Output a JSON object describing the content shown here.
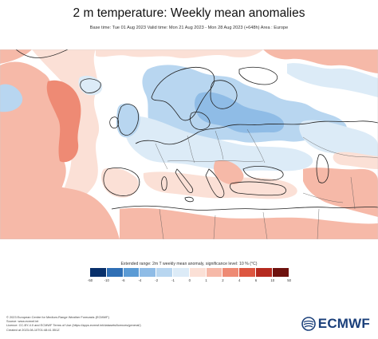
{
  "header": {
    "title": "2 m temperature: Weekly mean anomalies",
    "subtitle": "Base time: Tue 01 Aug 2023 Valid time: Mon 21 Aug 2023 - Mon 28 Aug 2023 (+648h) Area : Europe"
  },
  "legend": {
    "label": "Extended range: 2m T weekly mean anomaly, significance level: 10 % (°C)",
    "ticks": [
      "-50",
      "-10",
      "-6",
      "-4",
      "-2",
      "-1",
      "0",
      "1",
      "2",
      "4",
      "6",
      "10",
      "50"
    ],
    "colors": [
      "#08306b",
      "#2f6fb5",
      "#5b9bd5",
      "#8fbce6",
      "#b8d6f0",
      "#dcebf7",
      "#fbe0d6",
      "#f6b9a8",
      "#ee8a74",
      "#dd5640",
      "#b52a1f",
      "#6e120e"
    ]
  },
  "footer": {
    "lines": [
      "© 2023 European Centre for Medium-Range Weather Forecasts (ECMWF)",
      "Source: www.ecmwf.int",
      "Licence: CC-BY-4.0 and ECMWF Terms of Use (https://apps.ecmwf.int/datasets/licences/general/)",
      "Created at 2023-08-10T01:48:41.551Z"
    ]
  },
  "logo": {
    "text": "ECMWF"
  },
  "map": {
    "palette": {
      "ocean": "#ffffff",
      "warm_light": "#fbe0d6",
      "warm": "#f6b9a8",
      "warm_strong": "#ee8a74",
      "cold_light": "#dcebf7",
      "cold": "#b8d6f0",
      "cold_strong": "#8fbce6",
      "coast": "#222222",
      "border": "#555555"
    }
  }
}
